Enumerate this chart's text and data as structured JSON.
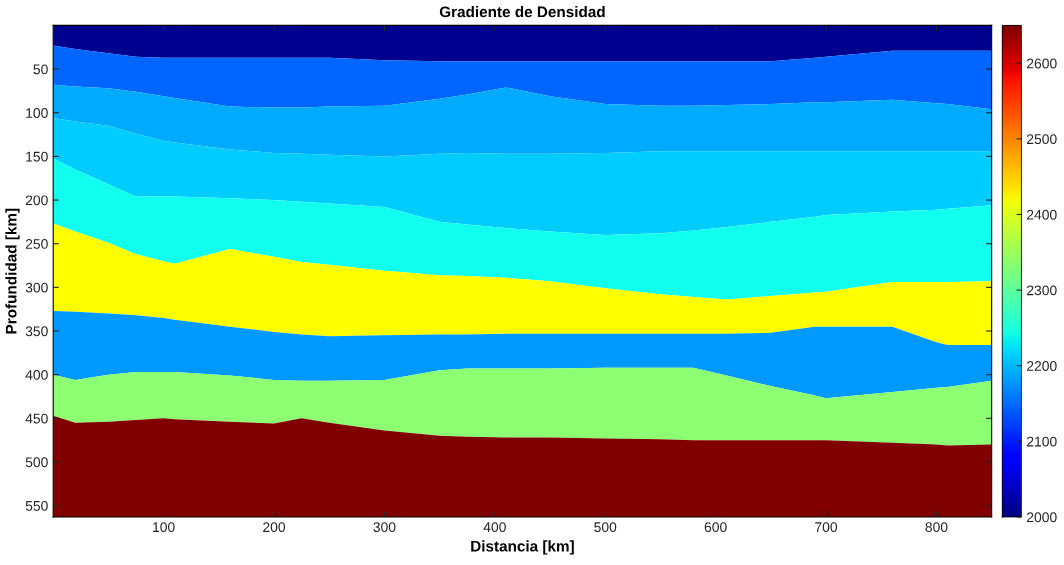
{
  "chart_data": {
    "type": "area",
    "stacked": true,
    "title": "Gradiente de Densidad",
    "xlabel": "Distancia [km]",
    "ylabel": "Profundidad [km]",
    "x": [
      0,
      20,
      50,
      75,
      100,
      110,
      160,
      200,
      225,
      250,
      300,
      350,
      375,
      410,
      450,
      500,
      550,
      580,
      610,
      650,
      690,
      700,
      760,
      800,
      810,
      850
    ],
    "series": [
      {
        "color": "#00008f",
        "values": [
          23,
          27,
          32,
          36,
          37,
          37,
          37,
          37,
          37,
          37,
          40,
          41,
          41,
          41,
          41,
          41,
          41,
          41,
          41,
          41,
          37,
          36,
          29,
          29,
          29,
          29
        ]
      },
      {
        "color": "#0066ff",
        "values": [
          45,
          43,
          40,
          40,
          44,
          46,
          56,
          57,
          57,
          56,
          52,
          43,
          38,
          30,
          40,
          49,
          51,
          51,
          50,
          49,
          51,
          52,
          56,
          60,
          61,
          67
        ]
      },
      {
        "color": "#00aaff",
        "values": [
          38,
          40,
          43,
          48,
          51,
          51,
          49,
          52,
          53,
          55,
          58,
          63,
          67,
          76,
          66,
          56,
          52,
          52,
          53,
          54,
          56,
          56,
          59,
          55,
          54,
          48
        ]
      },
      {
        "color": "#00ccff",
        "values": [
          46,
          55,
          67,
          72,
          64,
          62,
          56,
          54,
          55,
          56,
          58,
          78,
          82,
          85,
          89,
          94,
          94,
          91,
          87,
          81,
          75,
          73,
          69,
          67,
          66,
          62
        ]
      },
      {
        "color": "#10ffef",
        "values": [
          75,
          71,
          67,
          66,
          74,
          77,
          58,
          65,
          69,
          70,
          73,
          61,
          59,
          57,
          57,
          61,
          70,
          76,
          83,
          85,
          87,
          88,
          81,
          83,
          84,
          87
        ]
      },
      {
        "color": "#ffff00",
        "values": [
          100,
          92,
          81,
          70,
          65,
          64,
          89,
          86,
          83,
          82,
          74,
          68,
          67,
          64,
          60,
          52,
          45,
          42,
          39,
          42,
          39,
          40,
          51,
          69,
          72,
          73
        ]
      },
      {
        "color": "#0099ff",
        "values": [
          73,
          78,
          70,
          65,
          62,
          60,
          56,
          55,
          53,
          51,
          51,
          41,
          39,
          40,
          40,
          39,
          39,
          39,
          48,
          61,
          79,
          82,
          75,
          52,
          48,
          41
        ]
      },
      {
        "color": "#8cff73",
        "values": [
          47,
          49,
          54,
          55,
          53,
          54,
          53,
          50,
          43,
          48,
          58,
          75,
          78,
          79,
          79,
          81,
          82,
          83,
          74,
          62,
          51,
          48,
          58,
          65,
          67,
          73
        ]
      },
      {
        "color": "#800000",
        "values": [
          116,
          108,
          109,
          111,
          113,
          112,
          109,
          107,
          113,
          108,
          99,
          93,
          92,
          91,
          91,
          90,
          89,
          88,
          88,
          88,
          88,
          88,
          85,
          83,
          82,
          83
        ]
      }
    ],
    "xlim": [
      0,
      850
    ],
    "xticks": [
      100,
      200,
      300,
      400,
      500,
      600,
      700,
      800
    ],
    "ylim": [
      563,
      0
    ],
    "yticks": [
      50,
      100,
      150,
      200,
      250,
      300,
      350,
      400,
      450,
      500,
      550
    ],
    "clim": [
      2000,
      2650
    ],
    "cticks": [
      2000,
      2100,
      2200,
      2300,
      2400,
      2500,
      2600
    ]
  }
}
